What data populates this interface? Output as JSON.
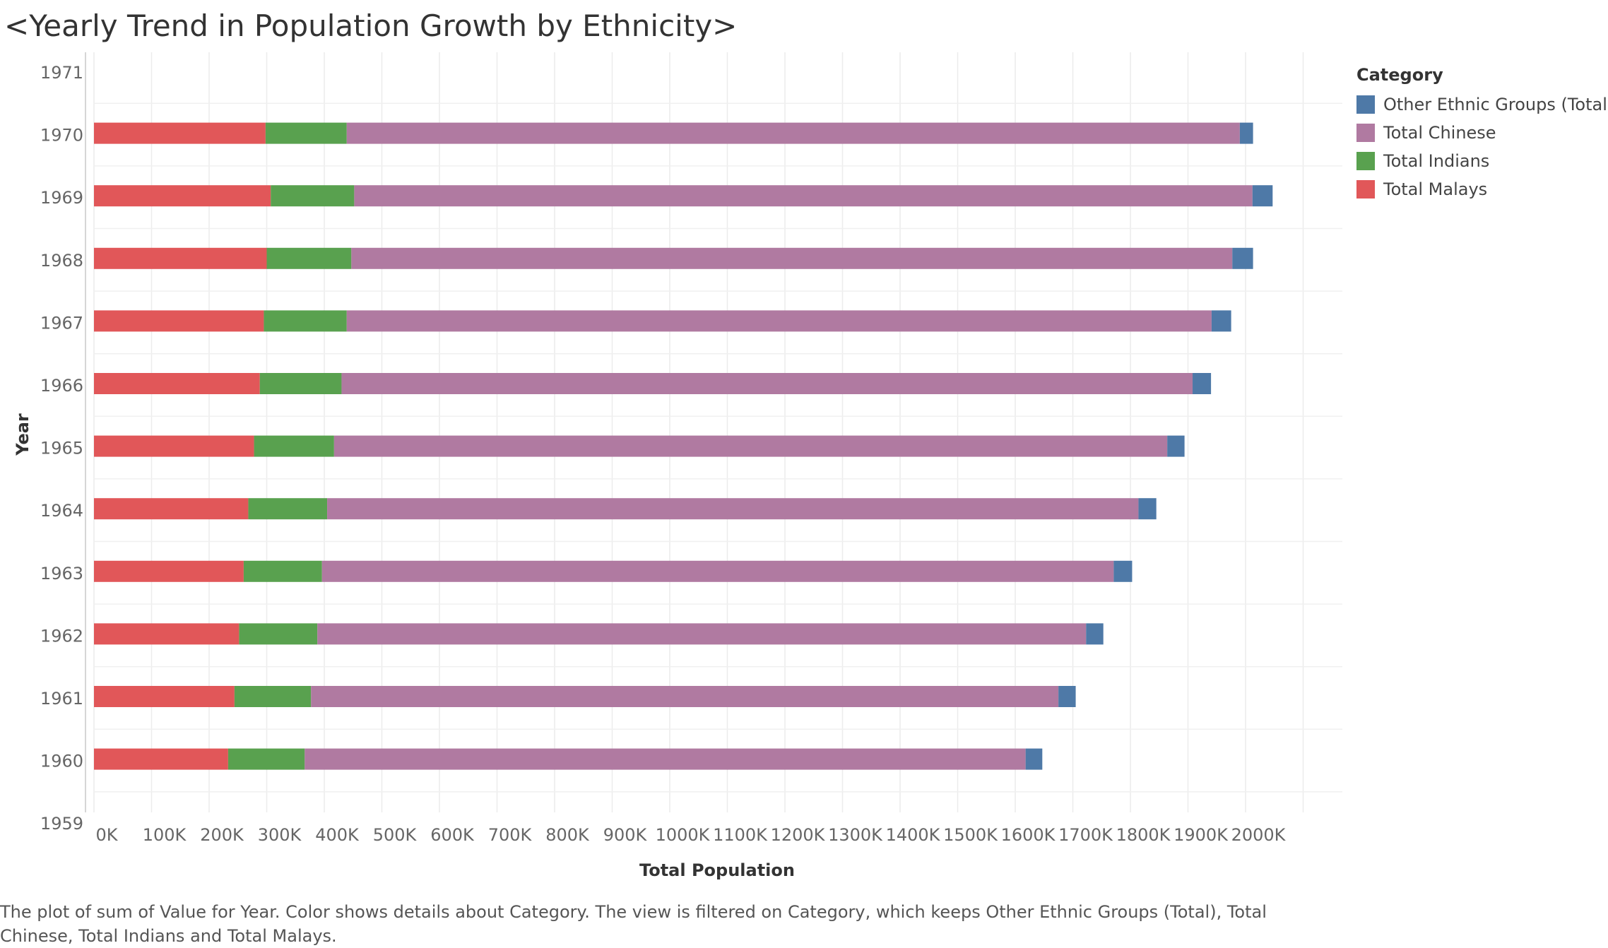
{
  "chart_data": {
    "type": "bar",
    "orientation": "horizontal",
    "stacked": true,
    "title": "<Yearly Trend in Population Growth by Ethnicity>",
    "xlabel": "Total Population",
    "ylabel": "Year",
    "xlim": [
      0,
      2100000
    ],
    "x_ticks": [
      0,
      100000,
      200000,
      300000,
      400000,
      500000,
      600000,
      700000,
      800000,
      900000,
      1000000,
      1100000,
      1200000,
      1300000,
      1400000,
      1500000,
      1600000,
      1700000,
      1800000,
      1900000,
      2000000
    ],
    "x_tick_labels": [
      "0K",
      "100K",
      "200K",
      "300K",
      "400K",
      "500K",
      "600K",
      "700K",
      "800K",
      "900K",
      "1000K",
      "1100K",
      "1200K",
      "1300K",
      "1400K",
      "1500K",
      "1600K",
      "1700K",
      "1800K",
      "1900K",
      "2000K"
    ],
    "y_tick_labels": [
      "1971",
      "1970",
      "1969",
      "1968",
      "1967",
      "1966",
      "1965",
      "1964",
      "1963",
      "1962",
      "1961",
      "1960",
      "1959"
    ],
    "categories": [
      "1970",
      "1969",
      "1968",
      "1967",
      "1966",
      "1965",
      "1964",
      "1963",
      "1962",
      "1961",
      "1960"
    ],
    "series": [
      {
        "name": "Total Malays",
        "color": "#e15759",
        "values": [
          298000,
          307000,
          300000,
          295000,
          288000,
          278000,
          268000,
          260000,
          252000,
          244000,
          233000
        ]
      },
      {
        "name": "Total Indians",
        "color": "#59a14f",
        "values": [
          141000,
          145000,
          147000,
          144000,
          142000,
          139000,
          137000,
          136000,
          136000,
          133000,
          133000
        ]
      },
      {
        "name": "Total Chinese",
        "color": "#b07aa1",
        "values": [
          1551000,
          1560000,
          1530000,
          1502000,
          1478000,
          1447000,
          1409000,
          1375000,
          1335000,
          1298000,
          1252000
        ]
      },
      {
        "name": "Other Ethnic Groups (Total)",
        "color": "#4e79a7",
        "values": [
          23000,
          35000,
          36000,
          34000,
          32000,
          30000,
          31000,
          32000,
          30000,
          30000,
          29000
        ]
      }
    ],
    "legend": {
      "title": "Category",
      "position": "right",
      "entries": [
        {
          "label": "Other Ethnic Groups (Total)",
          "color": "#4e79a7"
        },
        {
          "label": "Total Chinese",
          "color": "#b07aa1"
        },
        {
          "label": "Total Indians",
          "color": "#59a14f"
        },
        {
          "label": "Total Malays",
          "color": "#e15759"
        }
      ]
    },
    "grid": true
  },
  "caption": "The plot of sum of Value for Year.  Color shows details about Category. The view is filtered on Category, which keeps Other Ethnic Groups (Total), Total Chinese, Total Indians and Total Malays."
}
